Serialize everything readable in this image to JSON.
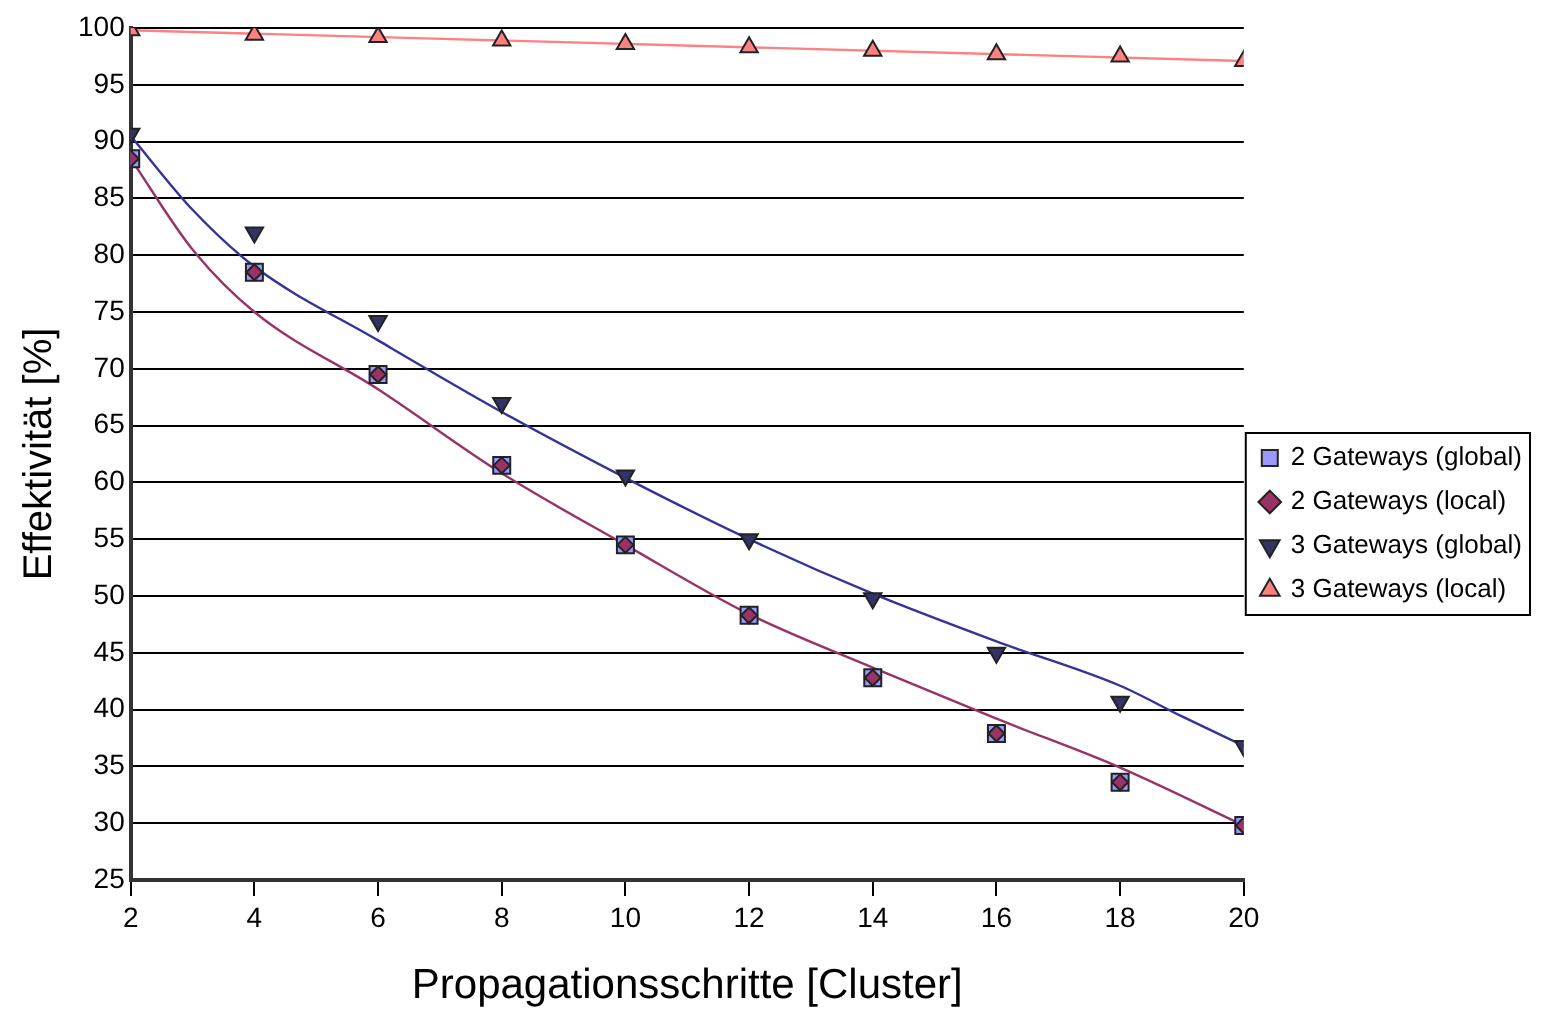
{
  "chart_data": {
    "type": "scatter",
    "xlabel": "Propagationsschritte [Cluster]",
    "ylabel": "Effektivität [%]",
    "x": [
      2,
      4,
      6,
      8,
      10,
      12,
      14,
      16,
      18,
      20
    ],
    "xlim": [
      2,
      20
    ],
    "xticks": [
      2,
      4,
      6,
      8,
      10,
      12,
      14,
      16,
      18,
      20
    ],
    "ylim": [
      25,
      100
    ],
    "yticks": [
      25,
      30,
      35,
      40,
      45,
      50,
      55,
      60,
      65,
      70,
      75,
      80,
      85,
      90,
      95,
      100
    ],
    "grid": "y",
    "legend": "right",
    "series": [
      {
        "type": "line",
        "color": "#993366",
        "marker": "none",
        "x": [
          2,
          3,
          4,
          6,
          8,
          10,
          12,
          14,
          16,
          18,
          20
        ],
        "values": [
          88.5,
          80.5,
          75,
          68.2,
          60.8,
          54.5,
          48.4,
          43.7,
          39.2,
          34.9,
          29.8
        ]
      },
      {
        "type": "line",
        "color": "#333399",
        "marker": "none",
        "x": [
          2,
          3,
          4,
          6,
          8,
          10,
          12,
          14,
          16,
          18,
          19,
          20
        ],
        "values": [
          90.5,
          84,
          79,
          72.5,
          66.2,
          60.4,
          55,
          50.2,
          46,
          42.1,
          39.4,
          36.8
        ]
      },
      {
        "type": "line",
        "color": "#ff8080",
        "marker": "none",
        "x": [
          2,
          20
        ],
        "values": [
          99.8,
          97.1
        ]
      },
      {
        "name": "2 Gateways (global)",
        "color": "#9999ff",
        "marker": "square",
        "values": [
          88.5,
          78.5,
          69.5,
          61.5,
          54.5,
          48.3,
          42.8,
          37.9,
          33.6,
          29.8
        ]
      },
      {
        "name": "2 Gateways (local)",
        "color": "#993366",
        "marker": "diamond",
        "values": [
          88.5,
          78.5,
          69.5,
          61.5,
          54.5,
          48.3,
          42.8,
          37.9,
          33.6,
          29.8
        ]
      },
      {
        "name": "3 Gateways (global)",
        "color": "#333366",
        "marker": "triangle_down",
        "values": [
          90.7,
          82,
          74.2,
          67,
          60.6,
          55,
          49.8,
          45,
          40.7,
          36.8
        ]
      },
      {
        "name": "3 Gateways (local)",
        "color": "#ff8080",
        "marker": "triangle",
        "values": [
          99.8,
          99.4,
          99.2,
          98.9,
          98.6,
          98.3,
          98,
          97.7,
          97.5,
          97.1
        ]
      }
    ]
  }
}
